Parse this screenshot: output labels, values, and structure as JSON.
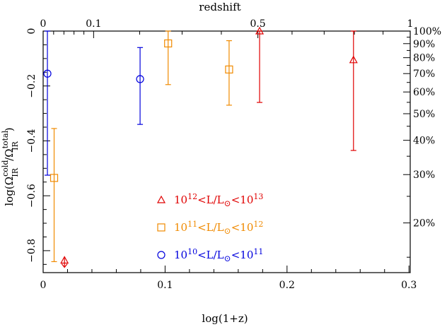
{
  "chart_data": {
    "type": "scatter",
    "xlabel": "log(1+z)",
    "ylabel": "log(Ω_IR^cold / Ω_IR^total)",
    "top_axis_label": "redshift",
    "xlim": [
      0,
      0.30103
    ],
    "ylim": [
      -0.88,
      0.0
    ],
    "x_ticks": [
      0,
      0.1,
      0.2,
      0.3
    ],
    "x_tick_labels": [
      "0",
      "0.1",
      "0.2",
      "0.3"
    ],
    "y_ticks": [
      0,
      -0.2,
      -0.4,
      -0.6,
      -0.8
    ],
    "y_tick_labels": [
      "0",
      "−0.2",
      "−0.4",
      "−0.6",
      "−0.8"
    ],
    "top_ticks_z": [
      0,
      0.1,
      0.5,
      1
    ],
    "top_tick_labels": [
      "0",
      "0.1",
      "0.5",
      "1"
    ],
    "right_ticks_percent": [
      100,
      90,
      80,
      70,
      60,
      50,
      40,
      30,
      20
    ],
    "right_tick_labels": [
      "100%",
      "90%",
      "80%",
      "70%",
      "60%",
      "50%",
      "40%",
      "30%",
      "20%"
    ],
    "grid": false,
    "legend_position": "bottom-center",
    "series": [
      {
        "name": "10^12<L/L⊙<10^13",
        "legend_parts": [
          "10",
          "12",
          "<L/L",
          "⊙",
          "<10",
          "13"
        ],
        "marker": "triangle",
        "color": "#e00000",
        "points": [
          {
            "x": 0.0175,
            "y": -0.835,
            "upper_limit": true
          },
          {
            "x": 0.1775,
            "y": 0.0,
            "yerr_low": 0.26,
            "yerr_high": 0.0
          },
          {
            "x": 0.2545,
            "y": -0.105,
            "yerr_low": 0.33,
            "yerr_high": 0.105
          }
        ]
      },
      {
        "name": "10^11<L/L⊙<10^12",
        "legend_parts": [
          "10",
          "11",
          "<L/L",
          "⊙",
          "<10",
          "12"
        ],
        "marker": "square",
        "color": "#f08a00",
        "points": [
          {
            "x": 0.009,
            "y": -0.535,
            "yerr_low": 0.305,
            "yerr_high": 0.18
          },
          {
            "x": 0.1025,
            "y": -0.045,
            "yerr_low": 0.15,
            "yerr_high": 0.045
          },
          {
            "x": 0.1525,
            "y": -0.14,
            "yerr_low": 0.13,
            "yerr_high": 0.105
          }
        ]
      },
      {
        "name": "10^10<L/L⊙<10^11",
        "legend_parts": [
          "10",
          "10",
          "<L/L",
          "⊙",
          "<10",
          "11"
        ],
        "marker": "circle",
        "color": "#0000dd",
        "points": [
          {
            "x": 0.0035,
            "y": -0.155,
            "yerr_low": 0.37,
            "yerr_high": 0.155
          },
          {
            "x": 0.0795,
            "y": -0.175,
            "yerr_low": 0.165,
            "yerr_high": 0.115
          }
        ]
      }
    ]
  }
}
